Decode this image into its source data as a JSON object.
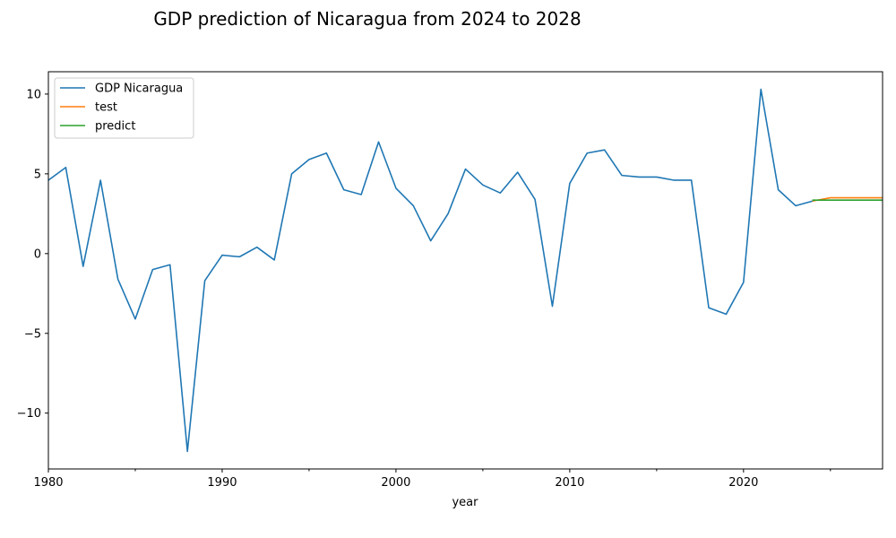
{
  "chart_data": {
    "type": "line",
    "title": "GDP prediction of Nicaragua from 2024 to 2028",
    "xlabel": "year",
    "ylabel": "",
    "xlim": [
      1980,
      2028
    ],
    "ylim": [
      -13.5,
      11.4
    ],
    "x_major_ticks": [
      1980,
      1990,
      2000,
      2010,
      2020
    ],
    "x_minor_ticks": [
      1985,
      1995,
      2005,
      2015,
      2025
    ],
    "y_ticks": [
      -10,
      -5,
      0,
      5,
      10
    ],
    "y_tick_labels": [
      "−10",
      "−5",
      "0",
      "5",
      "10"
    ],
    "grid": false,
    "legend_position": "top-left",
    "series": [
      {
        "name": "GDP Nicaragua",
        "color": "#1f77b4",
        "x": [
          1980,
          1981,
          1982,
          1983,
          1984,
          1985,
          1986,
          1987,
          1988,
          1989,
          1990,
          1991,
          1992,
          1993,
          1994,
          1995,
          1996,
          1997,
          1998,
          1999,
          2000,
          2001,
          2002,
          2003,
          2004,
          2005,
          2006,
          2007,
          2008,
          2009,
          2010,
          2011,
          2012,
          2013,
          2014,
          2015,
          2016,
          2017,
          2018,
          2019,
          2020,
          2021,
          2022,
          2023,
          2024
        ],
        "y": [
          4.6,
          5.4,
          -0.8,
          4.6,
          -1.6,
          -4.1,
          -1.0,
          -0.7,
          -12.4,
          -1.7,
          -0.1,
          -0.2,
          0.4,
          -0.4,
          5.0,
          5.9,
          6.3,
          4.0,
          3.7,
          7.0,
          4.1,
          3.0,
          0.8,
          2.5,
          5.3,
          4.3,
          3.8,
          5.1,
          3.4,
          -3.3,
          4.4,
          6.3,
          6.5,
          4.9,
          4.8,
          4.8,
          4.6,
          4.6,
          -3.4,
          -3.8,
          -1.8,
          10.3,
          4.0,
          3.0,
          3.3
        ]
      },
      {
        "name": "test",
        "color": "#ff7f0e",
        "x": [
          2024,
          2025,
          2026,
          2027,
          2028
        ],
        "y": [
          3.3,
          3.5,
          3.5,
          3.5,
          3.5
        ]
      },
      {
        "name": "predict",
        "color": "#2ca02c",
        "x": [
          2024,
          2025,
          2026,
          2027,
          2028
        ],
        "y": [
          3.35,
          3.35,
          3.35,
          3.35,
          3.35
        ]
      }
    ]
  }
}
